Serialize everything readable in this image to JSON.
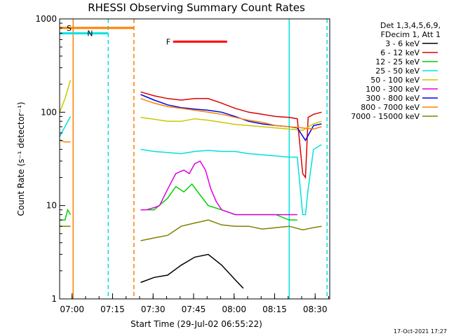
{
  "chart_data": {
    "type": "line",
    "title": "RHESSI Observing Summary Count Rates",
    "xlabel": "Start Time (29-Jul-02 06:55:22)",
    "ylabel": "Count Rate (s⁻¹ detector⁻¹)",
    "x_unit": "minutes after 29-Jul-02 06:55:22",
    "xlim": [
      0,
      100
    ],
    "ylim": [
      1,
      1000
    ],
    "y_scale": "log",
    "x_ticks": [
      {
        "label": "07:00",
        "t": 4.6
      },
      {
        "label": "07:15",
        "t": 19.6
      },
      {
        "label": "07:30",
        "t": 34.6
      },
      {
        "label": "07:45",
        "t": 49.6
      },
      {
        "label": "08:00",
        "t": 64.6
      },
      {
        "label": "08:15",
        "t": 79.6
      },
      {
        "label": "08:30",
        "t": 94.6
      }
    ],
    "y_ticks": [
      {
        "label": "1",
        "v": 1
      },
      {
        "label": "10",
        "v": 10
      },
      {
        "label": "100",
        "v": 100
      },
      {
        "label": "1000",
        "v": 1000
      }
    ],
    "legend_header": [
      "Det 1,3,4,5,6,9,",
      "FDecim 1, Att 1"
    ],
    "legend_placement": "right",
    "grid": false,
    "series": [
      {
        "name": "3 - 6 keV",
        "color": "#000000",
        "x": [
          30.0,
          35,
          40,
          45,
          50,
          55,
          60,
          65,
          68
        ],
        "values": [
          1.5,
          1.7,
          1.8,
          2.3,
          2.8,
          3.0,
          2.3,
          1.6,
          1.3
        ]
      },
      {
        "name": "6 - 12 keV",
        "color": "#e00000",
        "x": [
          30.0,
          35,
          40,
          45,
          50,
          55,
          60,
          65,
          70,
          75,
          80,
          85,
          88,
          90,
          91,
          92,
          94,
          97
        ],
        "values": [
          165,
          150,
          140,
          135,
          140,
          140,
          125,
          110,
          100,
          95,
          90,
          88,
          85,
          22,
          20,
          88,
          95,
          100
        ]
      },
      {
        "name": "12 - 25 keV",
        "color": "#00d000",
        "x": [
          0,
          2,
          3,
          4,
          30.0,
          35,
          40,
          43,
          46,
          49,
          52,
          55,
          60,
          65,
          70,
          75,
          80,
          85,
          88
        ],
        "values": [
          7,
          7,
          9,
          8,
          9,
          9,
          12,
          16,
          14,
          17,
          13,
          10,
          9,
          8,
          8,
          8,
          8,
          7,
          7
        ]
      },
      {
        "name": "25 - 50 keV",
        "color": "#00e0e0",
        "x": [
          0,
          2,
          4,
          30.0,
          35,
          40,
          45,
          50,
          55,
          60,
          65,
          70,
          75,
          80,
          85,
          88,
          90,
          91,
          92,
          94,
          97
        ],
        "values": [
          55,
          70,
          90,
          40,
          38,
          37,
          36,
          38,
          39,
          38,
          38,
          36,
          35,
          34,
          33,
          33,
          8,
          8,
          15,
          40,
          45
        ]
      },
      {
        "name": "50 - 100 keV",
        "color": "#c8c800",
        "x": [
          0,
          2,
          4,
          30.0,
          35,
          40,
          45,
          50,
          55,
          60,
          65,
          70,
          75,
          80,
          85,
          90,
          94,
          97
        ],
        "values": [
          100,
          140,
          220,
          88,
          84,
          80,
          80,
          85,
          82,
          78,
          74,
          72,
          70,
          68,
          66,
          64,
          75,
          80
        ]
      },
      {
        "name": "100 - 300 keV",
        "color": "#e000e0",
        "x": [
          30.0,
          32,
          35,
          37,
          40,
          43,
          46,
          48,
          50,
          52,
          54,
          56,
          58,
          60,
          65,
          70,
          75,
          80,
          85,
          88
        ],
        "values": [
          9,
          9,
          9.5,
          10,
          15,
          22,
          24,
          22,
          28,
          30,
          24,
          15,
          11,
          9,
          8,
          8,
          8,
          8,
          8,
          8
        ]
      },
      {
        "name": "300 - 800 keV",
        "color": "#0000e0",
        "x": [
          30.0,
          35,
          40,
          45,
          50,
          55,
          60,
          65,
          70,
          75,
          80,
          85,
          88,
          91,
          94,
          97
        ],
        "values": [
          155,
          135,
          120,
          112,
          108,
          105,
          100,
          90,
          80,
          75,
          72,
          70,
          68,
          50,
          72,
          75
        ]
      },
      {
        "name": "800 - 7000 keV",
        "color": "#ff8000",
        "x": [
          0,
          2,
          4,
          30.0,
          35,
          40,
          45,
          50,
          55,
          60,
          65,
          70,
          75,
          80,
          85,
          90,
          94,
          97
        ],
        "values": [
          50,
          48,
          48,
          140,
          125,
          115,
          110,
          105,
          100,
          95,
          88,
          82,
          78,
          72,
          70,
          68,
          66,
          70
        ]
      },
      {
        "name": "7000 - 15000 keV",
        "color": "#808000",
        "x": [
          0,
          2,
          4,
          30.0,
          35,
          40,
          45,
          50,
          55,
          60,
          65,
          70,
          75,
          80,
          85,
          90,
          94,
          97
        ],
        "values": [
          6,
          6,
          6,
          4.2,
          4.5,
          4.8,
          6,
          6.5,
          7,
          6.2,
          6,
          6,
          5.6,
          5.8,
          6,
          5.5,
          5.8,
          6
        ]
      }
    ],
    "flag_markers": [
      {
        "label": "S",
        "color": "#ff8000",
        "t_start": 0,
        "t_end": 27.5,
        "level": 800
      },
      {
        "label": "N",
        "color": "#00e0e0",
        "t_start": 0,
        "t_end": 18,
        "level": 700
      },
      {
        "label": "F",
        "color": "#ff0000",
        "t_start": 42,
        "t_end": 62,
        "level": 570
      }
    ],
    "vertical_markers": [
      {
        "t": 5,
        "color": "#ff8000",
        "style": "solid"
      },
      {
        "t": 18,
        "color": "#00e0e0",
        "style": "dashed"
      },
      {
        "t": 27.5,
        "color": "#ff8000",
        "style": "dashed"
      },
      {
        "t": 85,
        "color": "#00e0e0",
        "style": "solid"
      },
      {
        "t": 99,
        "color": "#00e0e0",
        "style": "dashed"
      }
    ],
    "timestamp": "17-Oct-2021 17:27"
  }
}
